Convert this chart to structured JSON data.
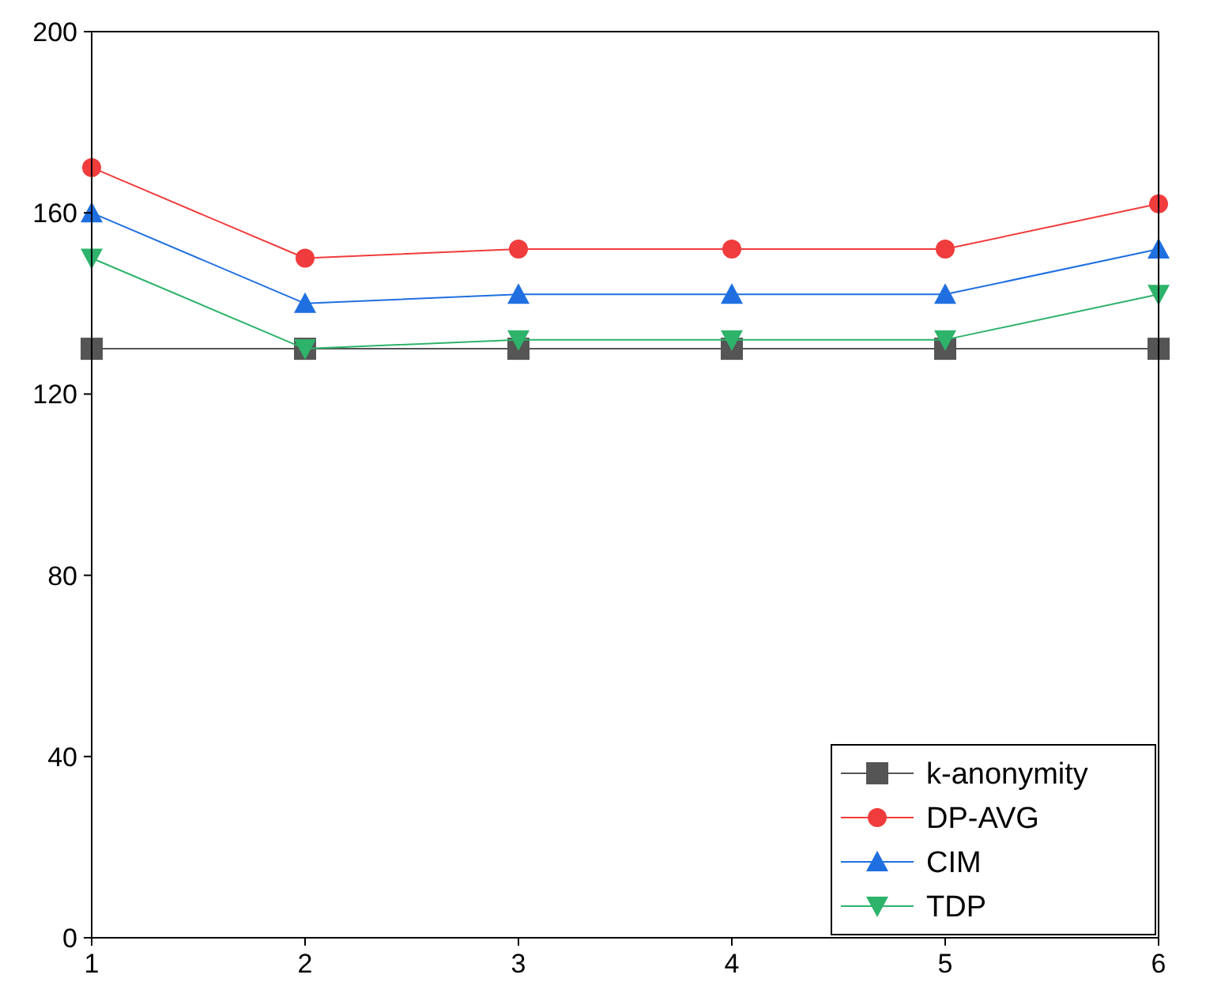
{
  "chart_data": {
    "type": "line",
    "x": [
      1,
      2,
      3,
      4,
      5,
      6
    ],
    "xlim": [
      1,
      6
    ],
    "xticks": [
      1,
      2,
      3,
      4,
      5,
      6
    ],
    "ylim": [
      0,
      200
    ],
    "yticks": [
      0,
      40,
      80,
      120,
      160,
      200
    ],
    "grid": false,
    "legend": "bottom right",
    "series": [
      {
        "name": "k-anonymity",
        "color": "#555555",
        "marker": "square",
        "values": [
          130,
          130,
          130,
          130,
          130,
          130
        ]
      },
      {
        "name": "DP-AVG",
        "color": "#f03c3c",
        "marker": "circle",
        "values": [
          170,
          150,
          152,
          152,
          152,
          162
        ]
      },
      {
        "name": "CIM",
        "color": "#1f6fe0",
        "marker": "triangle",
        "values": [
          160,
          140,
          142,
          142,
          142,
          152
        ]
      },
      {
        "name": "TDP",
        "color": "#2eb36b",
        "marker": "triangle-down",
        "values": [
          150,
          130,
          132,
          132,
          132,
          142
        ]
      }
    ]
  }
}
